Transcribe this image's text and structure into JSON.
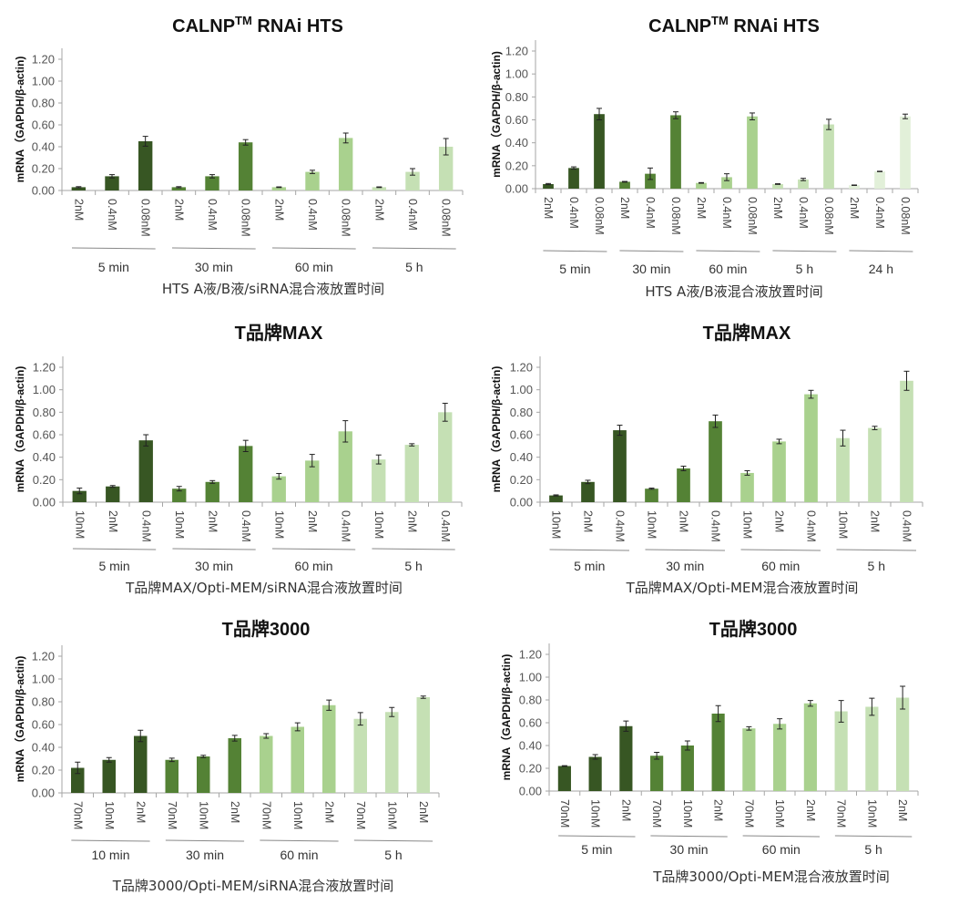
{
  "chart_data": [
    {
      "type": "bar",
      "title": "CALNP",
      "title_sup": "TM",
      "title_rest": " RNAi HTS",
      "ylabel": "mRNA（GAPDH/β-actin)",
      "xlabel": "HTS A液/B液/siRNA混合液放置时间",
      "ylim": [
        0,
        1.2
      ],
      "yticks": [
        "0.00",
        "0.20",
        "0.40",
        "0.60",
        "0.80",
        "1.00",
        "1.20"
      ],
      "groups": [
        "5 min",
        "30 min",
        "60 min",
        "5 h"
      ],
      "categories": [
        "2nM",
        "0.4nM",
        "0.08nM",
        "2nM",
        "0.4nM",
        "0.08nM",
        "2nM",
        "0.4nM",
        "0.08nM",
        "2nM",
        "0.4nM",
        "0.08nM"
      ],
      "values": [
        0.03,
        0.13,
        0.45,
        0.03,
        0.13,
        0.44,
        0.03,
        0.17,
        0.48,
        0.03,
        0.17,
        0.4
      ],
      "errors": [
        0.005,
        0.015,
        0.045,
        0.005,
        0.015,
        0.025,
        0.003,
        0.015,
        0.045,
        0.003,
        0.03,
        0.075
      ],
      "group_colors": [
        "#375623",
        "#548235",
        "#a9d18e",
        "#c5e0b4"
      ]
    },
    {
      "type": "bar",
      "title": "CALNP",
      "title_sup": "TM",
      "title_rest": " RNAi HTS",
      "ylabel": "mRNA（GAPDH/β-actin)",
      "xlabel": "HTS A液/B液混合液放置时间",
      "ylim": [
        0,
        1.2
      ],
      "yticks": [
        "0.00",
        "0.20",
        "0.40",
        "0.60",
        "0.80",
        "1.00",
        "1.20"
      ],
      "groups": [
        "5 min",
        "30 min",
        "60 min",
        "5 h",
        "24 h"
      ],
      "categories": [
        "2nM",
        "0.4nM",
        "0.08nM",
        "2nM",
        "0.4nM",
        "0.08nM",
        "2nM",
        "0.4nM",
        "0.08nM",
        "2nM",
        "0.4nM",
        "0.08nM",
        "2nM",
        "0.4nM",
        "0.08nM"
      ],
      "values": [
        0.04,
        0.18,
        0.65,
        0.06,
        0.13,
        0.64,
        0.05,
        0.1,
        0.63,
        0.04,
        0.08,
        0.56,
        0.03,
        0.15,
        0.63
      ],
      "errors": [
        0.005,
        0.01,
        0.05,
        0.003,
        0.05,
        0.03,
        0.003,
        0.03,
        0.03,
        0.003,
        0.01,
        0.045,
        0.002,
        0.002,
        0.02
      ],
      "group_colors": [
        "#375623",
        "#548235",
        "#a9d18e",
        "#c5e0b4",
        "#e2f0d9"
      ]
    },
    {
      "type": "bar",
      "title": "T品牌MAX",
      "title_sup": "",
      "title_rest": "",
      "ylabel": "mRNA（GAPDH/β-actin)",
      "xlabel": "T品牌MAX/Opti-MEM/siRNA混合液放置时间",
      "ylim": [
        0,
        1.2
      ],
      "yticks": [
        "0.00",
        "0.20",
        "0.40",
        "0.60",
        "0.80",
        "1.00",
        "1.20"
      ],
      "groups": [
        "5 min",
        "30 min",
        "60 min",
        "5 h"
      ],
      "categories": [
        "10nM",
        "2nM",
        "0.4nM",
        "10nM",
        "2nM",
        "0.4nM",
        "10nM",
        "2nM",
        "0.4nM",
        "10nM",
        "2nM",
        "0.4nM"
      ],
      "values": [
        0.1,
        0.14,
        0.55,
        0.12,
        0.18,
        0.5,
        0.23,
        0.37,
        0.63,
        0.38,
        0.51,
        0.8
      ],
      "errors": [
        0.025,
        0.008,
        0.05,
        0.02,
        0.012,
        0.05,
        0.025,
        0.055,
        0.095,
        0.04,
        0.01,
        0.08
      ],
      "group_colors": [
        "#375623",
        "#548235",
        "#a9d18e",
        "#c5e0b4"
      ]
    },
    {
      "type": "bar",
      "title": "T品牌MAX",
      "title_sup": "",
      "title_rest": "",
      "ylabel": "mRNA（GAPDH/β-actin)",
      "xlabel": "T品牌MAX/Opti-MEM混合液放置时间",
      "ylim": [
        0,
        1.2
      ],
      "yticks": [
        "0.00",
        "0.20",
        "0.40",
        "0.60",
        "0.80",
        "1.00",
        "1.20"
      ],
      "groups": [
        "5 min",
        "30 min",
        "60 min",
        "5 h"
      ],
      "categories": [
        "10nM",
        "2nM",
        "0.4nM",
        "10nM",
        "2nM",
        "0.4nM",
        "10nM",
        "2nM",
        "0.4nM",
        "10nM",
        "2nM",
        "0.4nM"
      ],
      "values": [
        0.06,
        0.18,
        0.64,
        0.12,
        0.3,
        0.72,
        0.26,
        0.54,
        0.96,
        0.57,
        0.66,
        1.08
      ],
      "errors": [
        0.005,
        0.015,
        0.045,
        0.005,
        0.02,
        0.055,
        0.02,
        0.02,
        0.035,
        0.07,
        0.015,
        0.085
      ],
      "group_colors": [
        "#375623",
        "#548235",
        "#a9d18e",
        "#c5e0b4"
      ]
    },
    {
      "type": "bar",
      "title": "T品牌3000",
      "title_sup": "",
      "title_rest": "",
      "ylabel": "mRNA（GAPDH/β-actin)",
      "xlabel": "T品牌3000/Opti-MEM/siRNA混合液放置时间",
      "ylim": [
        0,
        1.2
      ],
      "yticks": [
        "0.00",
        "0.20",
        "0.40",
        "0.60",
        "0.80",
        "1.00",
        "1.20"
      ],
      "groups": [
        "10 min",
        "30 min",
        "60 min",
        "5 h"
      ],
      "categories": [
        "70nM",
        "10nM",
        "2nM",
        "70nM",
        "10nM",
        "2nM",
        "70nM",
        "10nM",
        "2nM",
        "70nM",
        "10nM",
        "2nM"
      ],
      "values": [
        0.22,
        0.29,
        0.5,
        0.29,
        0.32,
        0.48,
        0.5,
        0.58,
        0.77,
        0.65,
        0.71,
        0.84
      ],
      "errors": [
        0.05,
        0.02,
        0.05,
        0.015,
        0.01,
        0.025,
        0.02,
        0.035,
        0.045,
        0.055,
        0.04,
        0.01
      ],
      "group_colors": [
        "#375623",
        "#548235",
        "#a9d18e",
        "#c5e0b4"
      ]
    },
    {
      "type": "bar",
      "title": "T品牌3000",
      "title_sup": "",
      "title_rest": "",
      "ylabel": "mRNA（GAPDH/β-actin)",
      "xlabel": "T品牌3000/Opti-MEM混合液放置时间",
      "ylim": [
        0,
        1.2
      ],
      "yticks": [
        "0.00",
        "0.20",
        "0.40",
        "0.60",
        "0.80",
        "1.00",
        "1.20"
      ],
      "groups": [
        "5 min",
        "30 min",
        "60 min",
        "5 h"
      ],
      "categories": [
        "70nM",
        "10nM",
        "2nM",
        "70nM",
        "10nM",
        "2nM",
        "70nM",
        "10nM",
        "2nM",
        "70nM",
        "10nM",
        "2nM"
      ],
      "values": [
        0.22,
        0.3,
        0.57,
        0.31,
        0.4,
        0.68,
        0.55,
        0.59,
        0.77,
        0.7,
        0.74,
        0.82
      ],
      "errors": [
        0.003,
        0.02,
        0.045,
        0.03,
        0.04,
        0.07,
        0.015,
        0.045,
        0.025,
        0.095,
        0.075,
        0.1
      ],
      "group_colors": [
        "#375623",
        "#548235",
        "#a9d18e",
        "#c5e0b4"
      ]
    }
  ]
}
